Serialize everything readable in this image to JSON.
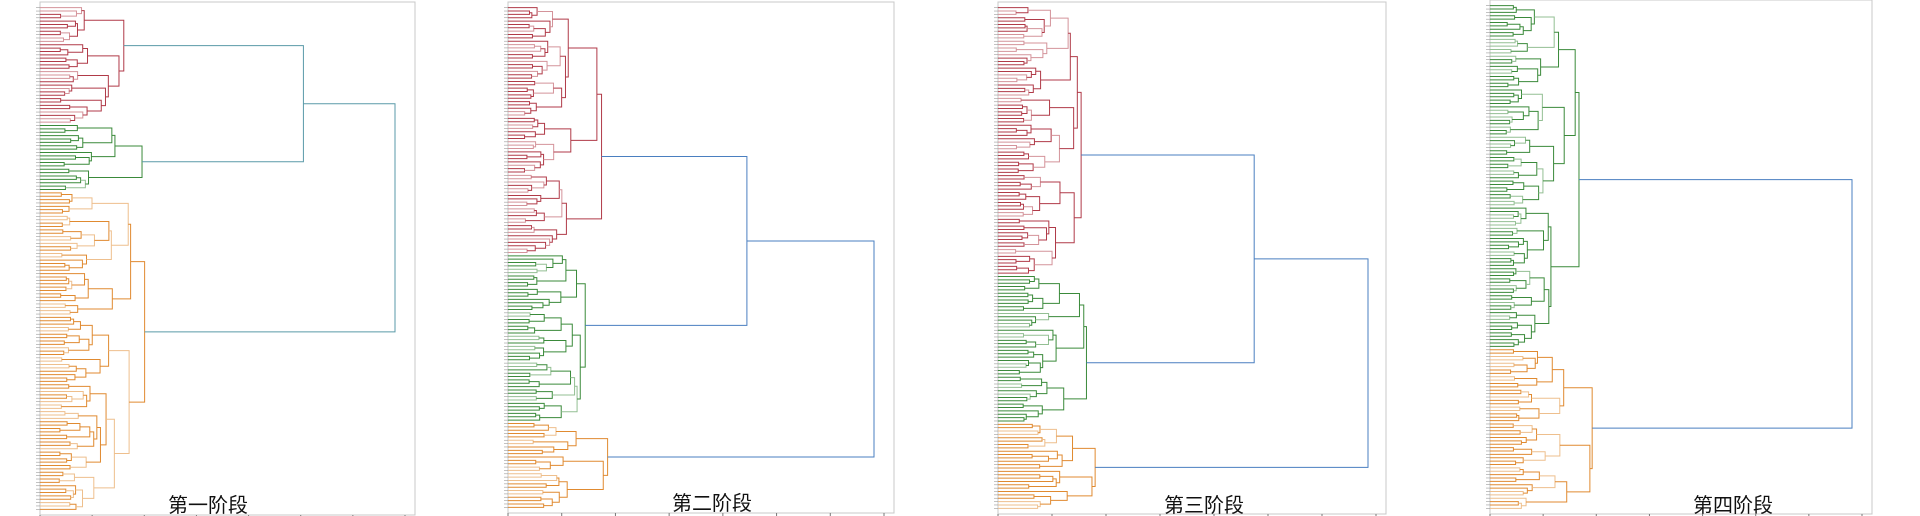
{
  "chart_data": [
    {
      "type": "dendrogram",
      "title": "第一阶段",
      "orientation": "leaves-left, merges-right",
      "leaf_labels_legible": false,
      "clusters": [
        {
          "name": "",
          "color": "#b03a48",
          "approx_share": 0.23
        },
        {
          "name": "",
          "color": "#3a8a3a",
          "approx_share": 0.13
        },
        {
          "name": "",
          "color": "#e08a30",
          "approx_share": 0.64
        }
      ],
      "root_link_color": "#5a9aa8"
    },
    {
      "type": "dendrogram",
      "title": "第二阶段",
      "orientation": "leaves-left, merges-right",
      "leaf_labels_legible": false,
      "clusters": [
        {
          "name": "",
          "color": "#b03a48",
          "approx_share": 0.49
        },
        {
          "name": "",
          "color": "#3a8a3a",
          "approx_share": 0.33
        },
        {
          "name": "",
          "color": "#e08a30",
          "approx_share": 0.18
        }
      ],
      "root_link_color": "#4a7fc0"
    },
    {
      "type": "dendrogram",
      "title": "第三阶段",
      "orientation": "leaves-left, merges-right",
      "leaf_labels_legible": false,
      "clusters": [
        {
          "name": "",
          "color": "#b03a48",
          "approx_share": 0.53
        },
        {
          "name": "",
          "color": "#3a8a3a",
          "approx_share": 0.29
        },
        {
          "name": "",
          "color": "#e08a30",
          "approx_share": 0.18
        }
      ],
      "root_link_color": "#4a7fc0"
    },
    {
      "type": "dendrogram",
      "title": "第四阶段",
      "orientation": "leaves-left, merges-right",
      "leaf_labels_legible": false,
      "clusters": [
        {
          "name": "",
          "color": "#3a8a3a",
          "approx_share": 0.68
        },
        {
          "name": "",
          "color": "#e08a30",
          "approx_share": 0.32
        }
      ],
      "root_link_color": "#4a7fc0"
    }
  ]
}
